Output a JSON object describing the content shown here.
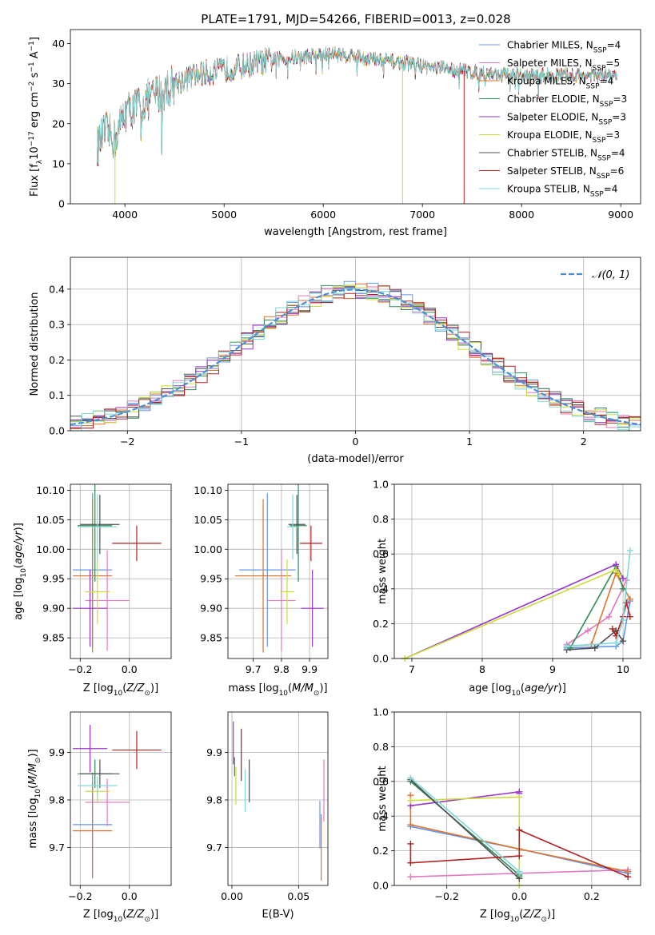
{
  "figure_title": "PLATE=1791, MJD=54266, FIBERID=0013, z=0.028",
  "legend_spectrum": [
    {
      "main": "Chabrier MILES, N",
      "sub": "SSP",
      "tail": "=4",
      "color": "#6495ed"
    },
    {
      "main": "Salpeter MILES, N",
      "sub": "SSP",
      "tail": "=5",
      "color": "#e377c2"
    },
    {
      "main": "Kroupa MILES, N",
      "sub": "SSP",
      "tail": "=4",
      "color": "#e0722b"
    },
    {
      "main": "Chabrier ELODIE, N",
      "sub": "SSP",
      "tail": "=3",
      "color": "#2e8b57"
    },
    {
      "main": "Salpeter ELODIE, N",
      "sub": "SSP",
      "tail": "=3",
      "color": "#9932cc"
    },
    {
      "main": "Kroupa ELODIE, N",
      "sub": "SSP",
      "tail": "=3",
      "color": "#cddc39"
    },
    {
      "main": "Chabrier STELIB, N",
      "sub": "SSP",
      "tail": "=4",
      "color": "#505050"
    },
    {
      "main": "Salpeter STELIB, N",
      "sub": "SSP",
      "tail": "=6",
      "color": "#b22222"
    },
    {
      "main": "Kroupa STELIB, N",
      "sub": "SSP",
      "tail": "=4",
      "color": "#7fd8d8"
    }
  ],
  "legend_normal": "𝒩(0, 1)",
  "chart_data": [
    {
      "id": "spectrum",
      "type": "line",
      "xlabel": "wavelength [Angstrom, rest frame]",
      "ylabel": "Flux [f_λ 10^-17 erg cm^-2 s^-1 A^-1]",
      "xlim": [
        3450,
        9200
      ],
      "ylim": [
        0,
        43.5
      ],
      "xticks": [
        4000,
        5000,
        6000,
        7000,
        8000,
        9000
      ],
      "yticks": [
        0,
        10,
        20,
        30,
        40
      ],
      "grid": false,
      "legend": "top-right",
      "x_range_data": [
        3720,
        8960
      ],
      "continuum_points": [
        [
          3720,
          14
        ],
        [
          3800,
          18
        ],
        [
          3900,
          16
        ],
        [
          4000,
          23
        ],
        [
          4100,
          24
        ],
        [
          4300,
          27
        ],
        [
          4500,
          30
        ],
        [
          4700,
          32
        ],
        [
          4900,
          33
        ],
        [
          5100,
          34
        ],
        [
          5300,
          35
        ],
        [
          5500,
          36
        ],
        [
          5700,
          36.5
        ],
        [
          5900,
          37
        ],
        [
          6100,
          37.5
        ],
        [
          6300,
          37
        ],
        [
          6500,
          36
        ],
        [
          6700,
          35.5
        ],
        [
          6900,
          35
        ],
        [
          7100,
          34
        ],
        [
          7300,
          33.5
        ],
        [
          7500,
          33
        ],
        [
          7700,
          32.5
        ],
        [
          7900,
          32
        ],
        [
          8100,
          32
        ],
        [
          8300,
          32
        ],
        [
          8500,
          32
        ],
        [
          8700,
          32
        ],
        [
          8960,
          32
        ]
      ],
      "dropouts": [
        {
          "series": "Kroupa ELODIE",
          "x": 6800,
          "y": 0
        },
        {
          "series": "Salpeter STELIB",
          "x": 7420,
          "y": 0
        },
        {
          "series": "Kroupa ELODIE",
          "x": 3900,
          "y": 0
        }
      ]
    },
    {
      "id": "residual-histogram",
      "type": "bar",
      "xlabel": "(data-model)/error",
      "ylabel": "Normed distribution",
      "xlim": [
        -2.5,
        2.5
      ],
      "ylim": [
        0,
        0.49
      ],
      "xticks": [
        -2,
        -1,
        0,
        1,
        2
      ],
      "yticks": [
        0.0,
        0.1,
        0.2,
        0.3,
        0.4
      ],
      "grid": true,
      "legend": "top-right",
      "bin_width": 0.1,
      "reference_curve": "N(0,1)"
    },
    {
      "id": "age-vs-Z",
      "type": "scatter",
      "xlabel": "Z [log10(Z/Z☉)]",
      "ylabel": "age  [log10(age/yr)]",
      "xlim": [
        -0.24,
        0.17
      ],
      "ylim": [
        9.815,
        10.11
      ],
      "xticks": [
        -0.2,
        0.0
      ],
      "yticks": [
        9.85,
        9.9,
        9.95,
        10.0,
        10.05,
        10.1
      ],
      "grid": true,
      "points": [
        {
          "x": -0.15,
          "y": 9.965,
          "xerr": 0.08,
          "yerr": 0.13,
          "color": "#6495ed"
        },
        {
          "x": -0.09,
          "y": 9.913,
          "xerr": 0.09,
          "yerr": 0.085,
          "color": "#e377c2"
        },
        {
          "x": -0.15,
          "y": 9.955,
          "xerr": 0.08,
          "yerr": 0.13,
          "color": "#e0722b"
        },
        {
          "x": -0.14,
          "y": 10.04,
          "xerr": 0.07,
          "yerr": 0.095,
          "color": "#2e8b57"
        },
        {
          "x": -0.16,
          "y": 9.9,
          "xerr": 0.07,
          "yerr": 0.065,
          "color": "#9932cc"
        },
        {
          "x": -0.13,
          "y": 9.928,
          "xerr": 0.05,
          "yerr": 0.055,
          "color": "#cddc39"
        },
        {
          "x": -0.12,
          "y": 10.042,
          "xerr": 0.08,
          "yerr": 0.05,
          "color": "#505050"
        },
        {
          "x": 0.03,
          "y": 10.01,
          "xerr": 0.1,
          "yerr": 0.03,
          "color": "#b22222"
        },
        {
          "x": -0.13,
          "y": 10.038,
          "xerr": 0.08,
          "yerr": 0.055,
          "color": "#7fd8d8"
        }
      ]
    },
    {
      "id": "age-vs-mass",
      "type": "scatter",
      "xlabel": "mass [log10(M/M☉)]",
      "ylabel": "",
      "xlim": [
        9.61,
        9.965
      ],
      "ylim": [
        9.815,
        10.11
      ],
      "xticks": [
        9.7,
        9.8,
        9.9
      ],
      "yticks": [
        9.85,
        9.9,
        9.95,
        10.0,
        10.05,
        10.1
      ],
      "grid": true,
      "points": [
        {
          "x": 9.75,
          "y": 9.965,
          "xerr": 0.1,
          "yerr": 0.13,
          "color": "#6495ed"
        },
        {
          "x": 9.8,
          "y": 9.913,
          "xerr": 0.05,
          "yerr": 0.085,
          "color": "#e377c2"
        },
        {
          "x": 9.735,
          "y": 9.955,
          "xerr": 0.1,
          "yerr": 0.13,
          "color": "#e0722b"
        },
        {
          "x": 9.86,
          "y": 10.04,
          "xerr": 0.03,
          "yerr": 0.095,
          "color": "#2e8b57"
        },
        {
          "x": 9.91,
          "y": 9.9,
          "xerr": 0.04,
          "yerr": 0.065,
          "color": "#9932cc"
        },
        {
          "x": 9.82,
          "y": 9.928,
          "xerr": 0.025,
          "yerr": 0.055,
          "color": "#cddc39"
        },
        {
          "x": 9.855,
          "y": 10.042,
          "xerr": 0.03,
          "yerr": 0.05,
          "color": "#505050"
        },
        {
          "x": 9.905,
          "y": 10.01,
          "xerr": 0.04,
          "yerr": 0.03,
          "color": "#b22222"
        },
        {
          "x": 9.84,
          "y": 10.038,
          "xerr": 0.02,
          "yerr": 0.055,
          "color": "#7fd8d8"
        }
      ]
    },
    {
      "id": "mass-weight-vs-age",
      "type": "line",
      "xlabel": "age  [log10(age/yr)]",
      "ylabel": "mass weight",
      "xlim": [
        6.75,
        10.25
      ],
      "ylim": [
        0,
        1.0
      ],
      "xticks": [
        7,
        8,
        9,
        10
      ],
      "yticks": [
        0.0,
        0.2,
        0.4,
        0.6,
        0.8,
        1.0
      ],
      "grid": true,
      "series": [
        {
          "color": "#6495ed",
          "x": [
            9.2,
            9.9,
            10.0,
            10.1
          ],
          "y": [
            0.06,
            0.07,
            0.1,
            0.33
          ]
        },
        {
          "color": "#e377c2",
          "x": [
            9.2,
            9.5,
            9.8,
            10.05
          ],
          "y": [
            0.08,
            0.16,
            0.24,
            0.45
          ]
        },
        {
          "color": "#e0722b",
          "x": [
            9.2,
            9.55,
            9.9,
            10.1
          ],
          "y": [
            0.07,
            0.08,
            0.49,
            0.34
          ]
        },
        {
          "color": "#2e8b57",
          "x": [
            9.25,
            9.9,
            10.0
          ],
          "y": [
            0.06,
            0.53,
            0.4
          ]
        },
        {
          "color": "#9932cc",
          "x": [
            6.9,
            9.9,
            10.0
          ],
          "y": [
            0.0,
            0.54,
            0.46
          ]
        },
        {
          "color": "#cddc39",
          "x": [
            6.9,
            9.9,
            9.95
          ],
          "y": [
            0.0,
            0.51,
            0.48
          ]
        },
        {
          "color": "#505050",
          "x": [
            9.2,
            9.6,
            9.9,
            10.0
          ],
          "y": [
            0.05,
            0.06,
            0.16,
            0.1
          ]
        },
        {
          "color": "#b22222",
          "x": [
            9.85,
            9.9,
            10.0,
            10.05,
            10.1
          ],
          "y": [
            0.17,
            0.13,
            0.24,
            0.32,
            0.24
          ]
        },
        {
          "color": "#7fd8d8",
          "x": [
            9.2,
            9.9,
            10.0,
            10.1
          ],
          "y": [
            0.07,
            0.09,
            0.22,
            0.62
          ]
        }
      ]
    },
    {
      "id": "mass-vs-Z",
      "type": "scatter",
      "xlabel": "Z [log10(Z/Z☉)]",
      "ylabel": "mass [log10(M/M☉)]",
      "xlim": [
        -0.24,
        0.17
      ],
      "ylim": [
        9.62,
        9.985
      ],
      "xticks": [
        -0.2,
        0.0
      ],
      "yticks": [
        9.7,
        9.8,
        9.9
      ],
      "grid": true,
      "points": [
        {
          "x": -0.15,
          "y": 9.748,
          "xerr": 0.08,
          "yerr": 0.11,
          "color": "#6495ed"
        },
        {
          "x": -0.09,
          "y": 9.795,
          "xerr": 0.09,
          "yerr": 0.05,
          "color": "#e377c2"
        },
        {
          "x": -0.15,
          "y": 9.735,
          "xerr": 0.08,
          "yerr": 0.1,
          "color": "#e0722b"
        },
        {
          "x": -0.14,
          "y": 9.855,
          "xerr": 0.07,
          "yerr": 0.03,
          "color": "#2e8b57"
        },
        {
          "x": -0.16,
          "y": 9.908,
          "xerr": 0.07,
          "yerr": 0.05,
          "color": "#9932cc"
        },
        {
          "x": -0.13,
          "y": 9.818,
          "xerr": 0.05,
          "yerr": 0.025,
          "color": "#cddc39"
        },
        {
          "x": -0.12,
          "y": 9.855,
          "xerr": 0.08,
          "yerr": 0.03,
          "color": "#505050"
        },
        {
          "x": 0.03,
          "y": 9.905,
          "xerr": 0.1,
          "yerr": 0.04,
          "color": "#b22222"
        },
        {
          "x": -0.13,
          "y": 9.83,
          "xerr": 0.08,
          "yerr": 0.02,
          "color": "#7fd8d8"
        }
      ]
    },
    {
      "id": "mass-vs-EBV",
      "type": "scatter",
      "xlabel": "E(B-V)",
      "ylabel": "",
      "xlim": [
        -0.003,
        0.072
      ],
      "ylim": [
        9.62,
        9.985
      ],
      "xticks": [
        0.0,
        0.05
      ],
      "yticks": [
        9.7,
        9.8,
        9.9
      ],
      "grid": true,
      "points": [
        {
          "x": 0.066,
          "y": 9.748,
          "yerr": 0.05,
          "color": "#6495ed"
        },
        {
          "x": 0.069,
          "y": 9.82,
          "yerr": 0.065,
          "color": "#e377c2"
        },
        {
          "x": 0.067,
          "y": 9.7,
          "yerr": 0.07,
          "color": "#e0722b"
        },
        {
          "x": 0.002,
          "y": 9.87,
          "yerr": 0.02,
          "color": "#2e8b57"
        },
        {
          "x": 0.001,
          "y": 9.92,
          "yerr": 0.045,
          "color": "#9932cc"
        },
        {
          "x": 0.003,
          "y": 9.83,
          "yerr": 0.04,
          "color": "#cddc39"
        },
        {
          "x": 0.013,
          "y": 9.84,
          "yerr": 0.045,
          "color": "#505050"
        },
        {
          "x": 0.007,
          "y": 9.895,
          "yerr": 0.055,
          "color": "#b22222"
        },
        {
          "x": 0.01,
          "y": 9.82,
          "yerr": 0.045,
          "color": "#7fd8d8"
        }
      ]
    },
    {
      "id": "mass-weight-vs-Z",
      "type": "line",
      "xlabel": "Z [log10(Z/Z☉)]",
      "ylabel": "mass weight",
      "xlim": [
        -0.345,
        0.335
      ],
      "ylim": [
        0,
        1.0
      ],
      "xticks": [
        -0.2,
        0.0,
        0.2
      ],
      "yticks": [
        0.0,
        0.2,
        0.4,
        0.6,
        0.8,
        1.0
      ],
      "grid": true,
      "series": [
        {
          "color": "#6495ed",
          "x": [
            -0.3,
            0.0,
            0.3
          ],
          "y": [
            0.34,
            0.21,
            0.07
          ]
        },
        {
          "color": "#e377c2",
          "x": [
            -0.3,
            0.0,
            0.3
          ],
          "y": [
            0.05,
            0.07,
            0.09
          ]
        },
        {
          "color": "#e0722b",
          "x": [
            -0.3,
            -0.3,
            0.0,
            0.3
          ],
          "y": [
            0.52,
            0.35,
            0.21,
            0.08
          ]
        },
        {
          "color": "#2e8b57",
          "x": [
            -0.3,
            0.0,
            0.0
          ],
          "y": [
            0.6,
            0.06,
            0.05
          ]
        },
        {
          "color": "#9932cc",
          "x": [
            -0.3,
            0.0,
            0.0
          ],
          "y": [
            0.46,
            0.54,
            0.53
          ]
        },
        {
          "color": "#cddc39",
          "x": [
            -0.3,
            0.0,
            0.0
          ],
          "y": [
            0.49,
            0.51,
            0.0
          ]
        },
        {
          "color": "#505050",
          "x": [
            -0.3,
            0.0
          ],
          "y": [
            0.61,
            0.04
          ]
        },
        {
          "color": "#b22222",
          "x": [
            -0.3,
            -0.3,
            0.0,
            0.0,
            0.3
          ],
          "y": [
            0.24,
            0.13,
            0.17,
            0.32,
            0.05
          ]
        },
        {
          "color": "#7fd8d8",
          "x": [
            -0.3,
            0.0,
            0.0
          ],
          "y": [
            0.62,
            0.08,
            0.07
          ]
        }
      ]
    }
  ]
}
